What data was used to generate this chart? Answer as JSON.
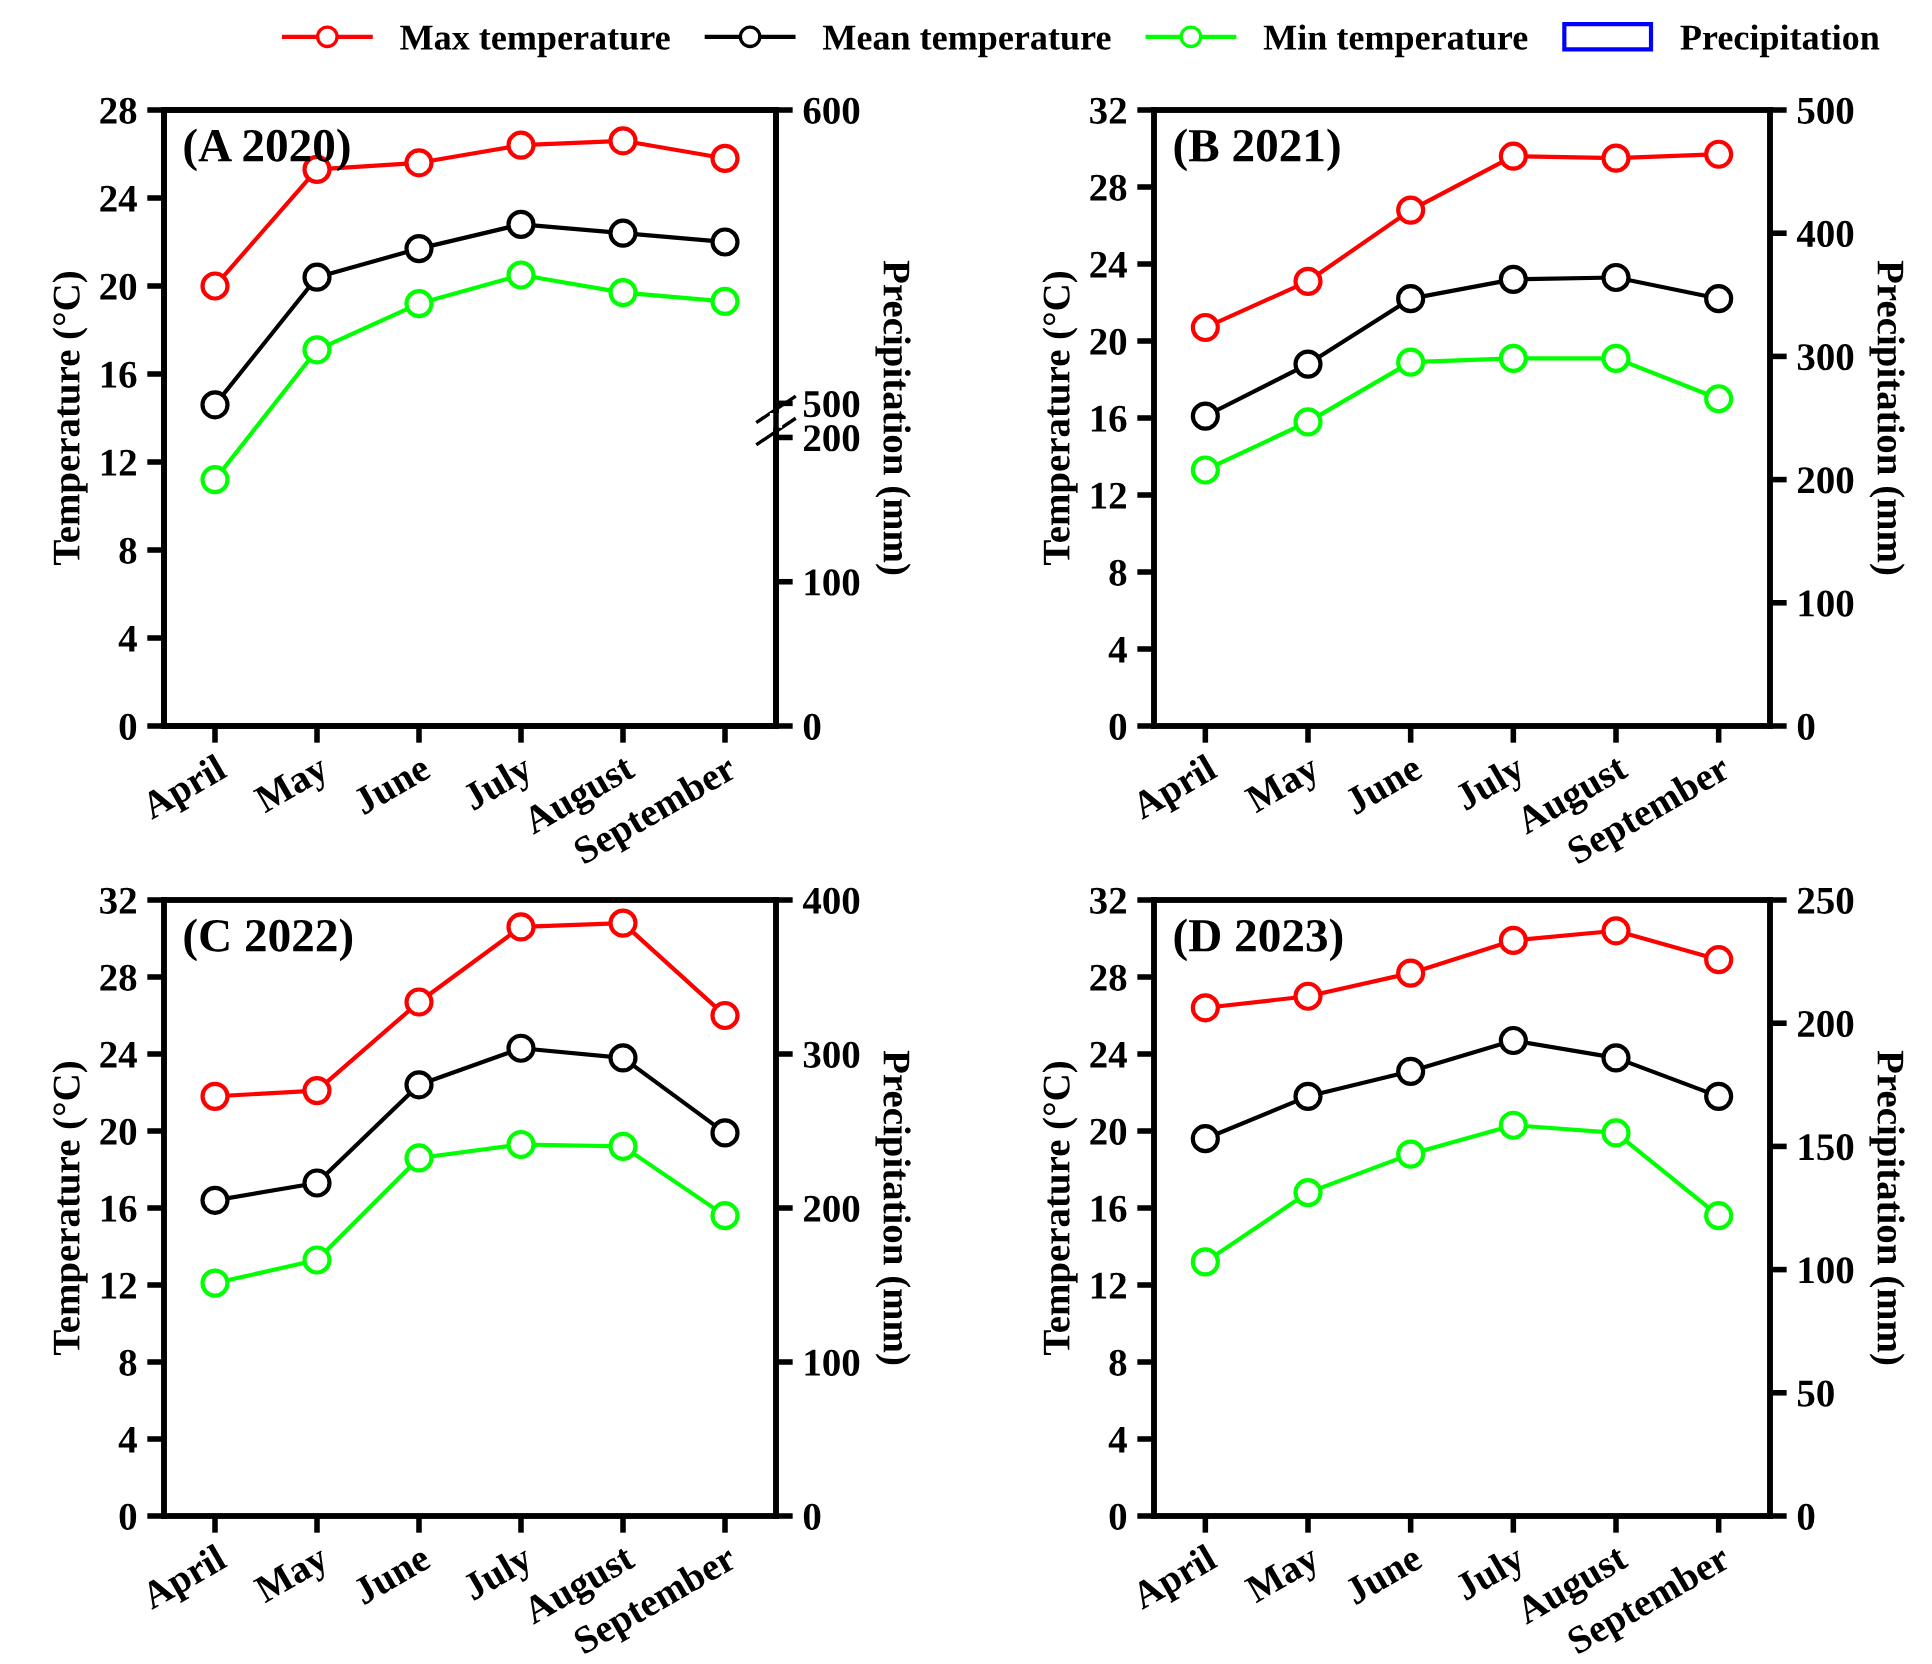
{
  "chart_data": [
    {
      "type": "line",
      "title": "(A 2020)",
      "categories": [
        "April",
        "May",
        "June",
        "July",
        "August",
        "September"
      ],
      "ylabel": "Temperature (°C)",
      "y2label": "Precipitation (mm)",
      "ylim": [
        0,
        28
      ],
      "yticks": [
        0,
        4,
        8,
        12,
        16,
        20,
        24,
        28
      ],
      "y2lim": [
        0,
        427
      ],
      "y2ticks": [
        0,
        100,
        200
      ],
      "y3lim": [
        390,
        600
      ],
      "y3ticks": [
        500,
        600
      ],
      "marker": "circle",
      "legend": "top",
      "series": [
        {
          "name": "Max temperature",
          "color": "#ff0000",
          "values": [
            20.0,
            25.3,
            25.6,
            26.4,
            26.6,
            25.8
          ]
        },
        {
          "name": "Mean temperature",
          "color": "#000000",
          "values": [
            14.6,
            20.4,
            21.7,
            22.8,
            22.4,
            22.0
          ]
        },
        {
          "name": "Min temperature",
          "color": "#00ff00",
          "values": [
            11.2,
            17.1,
            19.2,
            20.5,
            19.7,
            19.3
          ]
        },
        {
          "name": "Precipitation",
          "type": "bar",
          "color": "#0000ff",
          "values": [
            null,
            null,
            null,
            null,
            null,
            null
          ]
        }
      ]
    },
    {
      "type": "line",
      "title": "(B 2021)",
      "categories": [
        "April",
        "May",
        "June",
        "July",
        "August",
        "September"
      ],
      "ylabel": "Temperature (°C)",
      "y2label": "Precipitation (mm)",
      "ylim": [
        0,
        32
      ],
      "yticks": [
        0,
        4,
        8,
        12,
        16,
        20,
        24,
        28,
        32
      ],
      "y2lim": [
        0,
        500
      ],
      "y2ticks": [
        0,
        100,
        200,
        300,
        400,
        500
      ],
      "marker": "circle",
      "series": [
        {
          "color": "#ff0000",
          "values": [
            20.7,
            23.1,
            26.8,
            29.6,
            29.5,
            29.7
          ]
        },
        {
          "color": "#000000",
          "values": [
            16.1,
            18.8,
            22.2,
            23.2,
            23.3,
            22.2
          ]
        },
        {
          "color": "#00ff00",
          "values": [
            13.3,
            15.8,
            18.9,
            19.1,
            19.1,
            17.0
          ]
        },
        {
          "type": "bar",
          "color": "#0000ff",
          "values": [
            null,
            null,
            null,
            null,
            null,
            null
          ]
        }
      ]
    },
    {
      "type": "line",
      "title": "(C 2022)",
      "categories": [
        "April",
        "May",
        "June",
        "July",
        "August",
        "September"
      ],
      "ylabel": "Temperature (°C)",
      "y2label": "Precipitation (mm)",
      "ylim": [
        0,
        32
      ],
      "yticks": [
        0,
        4,
        8,
        12,
        16,
        20,
        24,
        28,
        32
      ],
      "y2lim": [
        0,
        400
      ],
      "y2ticks": [
        0,
        100,
        200,
        300,
        400
      ],
      "marker": "circle",
      "series": [
        {
          "color": "#ff0000",
          "values": [
            21.8,
            22.1,
            26.7,
            30.6,
            30.8,
            26.0
          ]
        },
        {
          "color": "#000000",
          "values": [
            16.4,
            17.3,
            22.4,
            24.3,
            23.8,
            19.9
          ]
        },
        {
          "color": "#00ff00",
          "values": [
            12.1,
            13.3,
            18.6,
            19.3,
            19.2,
            15.6
          ]
        },
        {
          "type": "bar",
          "color": "#0000ff",
          "values": [
            null,
            null,
            null,
            null,
            null,
            null
          ]
        }
      ]
    },
    {
      "type": "line",
      "title": "(D 2023)",
      "categories": [
        "April",
        "May",
        "June",
        "July",
        "August",
        "September"
      ],
      "ylabel": "Temperature (°C)",
      "y2label": "Precipitation (mm)",
      "ylim": [
        0,
        32
      ],
      "yticks": [
        0,
        4,
        8,
        12,
        16,
        20,
        24,
        28,
        32
      ],
      "y2lim": [
        0,
        250
      ],
      "y2ticks": [
        0,
        50,
        100,
        150,
        200,
        250
      ],
      "marker": "circle",
      "series": [
        {
          "color": "#ff0000",
          "values": [
            26.4,
            27.0,
            28.2,
            29.9,
            30.4,
            28.9
          ]
        },
        {
          "color": "#000000",
          "values": [
            19.6,
            21.8,
            23.1,
            24.7,
            23.8,
            21.8
          ]
        },
        {
          "color": "#00ff00",
          "values": [
            13.2,
            16.8,
            18.8,
            20.3,
            19.9,
            15.6
          ]
        },
        {
          "type": "bar",
          "color": "#0000ff",
          "values": [
            null,
            null,
            null,
            null,
            null,
            null
          ]
        }
      ]
    }
  ]
}
